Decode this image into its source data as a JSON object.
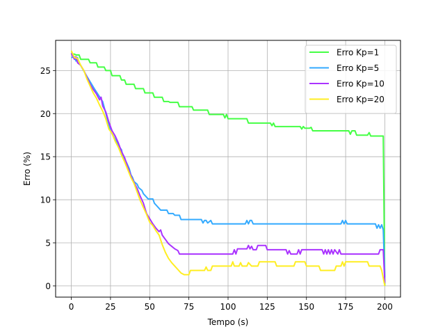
{
  "chart_data": {
    "type": "line",
    "title": "",
    "xlabel": "Tempo (s)",
    "ylabel": "Erro (%)",
    "xlim": [
      -10,
      210
    ],
    "ylim": [
      -1.3,
      28.5
    ],
    "xticks": [
      0,
      25,
      50,
      75,
      100,
      125,
      150,
      175,
      200
    ],
    "yticks": [
      0,
      5,
      10,
      15,
      20,
      25
    ],
    "grid": true,
    "legend_position": "top-right",
    "series": [
      {
        "name": "Erro Kp=1",
        "color": "#44ff44",
        "points": [
          [
            0,
            27.0
          ],
          [
            1,
            26.9
          ],
          [
            2,
            26.9
          ],
          [
            3,
            26.8
          ],
          [
            5,
            26.8
          ],
          [
            6,
            26.3
          ],
          [
            11,
            26.3
          ],
          [
            12,
            25.9
          ],
          [
            16,
            25.9
          ],
          [
            17,
            25.4
          ],
          [
            21,
            25.4
          ],
          [
            22,
            25.0
          ],
          [
            25,
            25.0
          ],
          [
            26,
            24.4
          ],
          [
            31,
            24.4
          ],
          [
            32,
            23.9
          ],
          [
            34,
            23.9
          ],
          [
            35,
            23.4
          ],
          [
            40,
            23.4
          ],
          [
            41,
            22.9
          ],
          [
            46,
            22.9
          ],
          [
            47,
            22.4
          ],
          [
            52,
            22.4
          ],
          [
            53,
            21.9
          ],
          [
            58,
            21.9
          ],
          [
            59,
            21.4
          ],
          [
            62,
            21.4
          ],
          [
            63,
            21.3
          ],
          [
            68,
            21.3
          ],
          [
            69,
            20.8
          ],
          [
            77,
            20.8
          ],
          [
            78,
            20.4
          ],
          [
            87,
            20.4
          ],
          [
            88,
            19.9
          ],
          [
            97,
            19.9
          ],
          [
            98,
            19.5
          ],
          [
            99,
            19.9
          ],
          [
            100,
            19.4
          ],
          [
            112,
            19.4
          ],
          [
            113,
            18.9
          ],
          [
            127,
            18.9
          ],
          [
            128,
            18.6
          ],
          [
            129,
            18.9
          ],
          [
            130,
            18.5
          ],
          [
            146,
            18.5
          ],
          [
            147,
            18.2
          ],
          [
            148,
            18.5
          ],
          [
            149,
            18.3
          ],
          [
            152,
            18.3
          ],
          [
            153,
            18.4
          ],
          [
            154,
            18.0
          ],
          [
            177,
            18.0
          ],
          [
            178,
            17.6
          ],
          [
            179,
            18.0
          ],
          [
            181,
            18.0
          ],
          [
            182,
            17.5
          ],
          [
            189,
            17.5
          ],
          [
            190,
            17.8
          ],
          [
            191,
            17.4
          ],
          [
            199,
            17.4
          ],
          [
            200,
            0.0
          ]
        ]
      },
      {
        "name": "Erro Kp=5",
        "color": "#33aaff",
        "points": [
          [
            0,
            26.5
          ],
          [
            2,
            26.6
          ],
          [
            3,
            26.1
          ],
          [
            4,
            26.5
          ],
          [
            5,
            25.9
          ],
          [
            10,
            24.3
          ],
          [
            15,
            22.8
          ],
          [
            20,
            21.4
          ],
          [
            25,
            18.0
          ],
          [
            28,
            17.0
          ],
          [
            30,
            16.3
          ],
          [
            32,
            15.8
          ],
          [
            33,
            15.0
          ],
          [
            35,
            14.4
          ],
          [
            37,
            13.6
          ],
          [
            38,
            12.9
          ],
          [
            39,
            12.6
          ],
          [
            40,
            12.1
          ],
          [
            42,
            11.8
          ],
          [
            43,
            11.4
          ],
          [
            45,
            11.1
          ],
          [
            46,
            10.7
          ],
          [
            48,
            10.3
          ],
          [
            49,
            10.1
          ],
          [
            52,
            10.1
          ],
          [
            53,
            9.6
          ],
          [
            54,
            9.4
          ],
          [
            56,
            9.0
          ],
          [
            57,
            8.8
          ],
          [
            61,
            8.8
          ],
          [
            62,
            8.4
          ],
          [
            65,
            8.4
          ],
          [
            66,
            8.2
          ],
          [
            69,
            8.2
          ],
          [
            70,
            7.7
          ],
          [
            83,
            7.7
          ],
          [
            84,
            7.3
          ],
          [
            85,
            7.6
          ],
          [
            86,
            7.6
          ],
          [
            87,
            7.3
          ],
          [
            89,
            7.6
          ],
          [
            90,
            7.2
          ],
          [
            111,
            7.2
          ],
          [
            112,
            7.6
          ],
          [
            113,
            7.2
          ],
          [
            114,
            7.6
          ],
          [
            115,
            7.6
          ],
          [
            116,
            7.2
          ],
          [
            172,
            7.2
          ],
          [
            173,
            7.6
          ],
          [
            174,
            7.2
          ],
          [
            175,
            7.6
          ],
          [
            176,
            7.2
          ],
          [
            194,
            7.2
          ],
          [
            195,
            6.7
          ],
          [
            196,
            7.1
          ],
          [
            197,
            6.7
          ],
          [
            198,
            7.1
          ],
          [
            199,
            6.5
          ],
          [
            200,
            1.0
          ]
        ]
      },
      {
        "name": "Erro Kp=10",
        "color": "#aa33ff",
        "points": [
          [
            0,
            27.0
          ],
          [
            2,
            26.3
          ],
          [
            3,
            26.6
          ],
          [
            4,
            25.9
          ],
          [
            6,
            25.6
          ],
          [
            8,
            25.0
          ],
          [
            10,
            24.2
          ],
          [
            12,
            23.4
          ],
          [
            14,
            22.8
          ],
          [
            16,
            22.3
          ],
          [
            18,
            21.6
          ],
          [
            19,
            21.9
          ],
          [
            20,
            20.9
          ],
          [
            22,
            20.2
          ],
          [
            24,
            19.0
          ],
          [
            26,
            18.0
          ],
          [
            28,
            17.4
          ],
          [
            30,
            16.6
          ],
          [
            32,
            15.6
          ],
          [
            34,
            14.9
          ],
          [
            36,
            13.8
          ],
          [
            38,
            12.8
          ],
          [
            40,
            12.0
          ],
          [
            42,
            11.3
          ],
          [
            44,
            10.4
          ],
          [
            46,
            9.6
          ],
          [
            48,
            8.4
          ],
          [
            50,
            7.8
          ],
          [
            52,
            7.2
          ],
          [
            54,
            6.7
          ],
          [
            56,
            6.3
          ],
          [
            57,
            6.5
          ],
          [
            58,
            5.9
          ],
          [
            60,
            5.4
          ],
          [
            62,
            4.9
          ],
          [
            64,
            4.6
          ],
          [
            66,
            4.3
          ],
          [
            68,
            4.1
          ],
          [
            69,
            3.7
          ],
          [
            103,
            3.7
          ],
          [
            104,
            4.2
          ],
          [
            105,
            3.7
          ],
          [
            106,
            4.3
          ],
          [
            112,
            4.3
          ],
          [
            113,
            4.7
          ],
          [
            114,
            4.3
          ],
          [
            115,
            4.6
          ],
          [
            116,
            4.2
          ],
          [
            118,
            4.2
          ],
          [
            119,
            4.7
          ],
          [
            124,
            4.7
          ],
          [
            125,
            4.2
          ],
          [
            137,
            4.2
          ],
          [
            138,
            3.7
          ],
          [
            139,
            4.1
          ],
          [
            140,
            3.7
          ],
          [
            144,
            3.7
          ],
          [
            145,
            4.2
          ],
          [
            146,
            3.7
          ],
          [
            147,
            4.2
          ],
          [
            160,
            4.2
          ],
          [
            161,
            3.7
          ],
          [
            162,
            4.2
          ],
          [
            163,
            3.7
          ],
          [
            164,
            4.2
          ],
          [
            165,
            3.7
          ],
          [
            166,
            4.2
          ],
          [
            167,
            3.7
          ],
          [
            168,
            4.2
          ],
          [
            170,
            3.7
          ],
          [
            171,
            4.2
          ],
          [
            172,
            3.7
          ],
          [
            196,
            3.7
          ],
          [
            197,
            4.2
          ],
          [
            199,
            4.2
          ],
          [
            200,
            0.3
          ]
        ]
      },
      {
        "name": "Erro Kp=20",
        "color": "#ffee22",
        "points": [
          [
            0,
            27.3
          ],
          [
            2,
            26.5
          ],
          [
            4,
            26.4
          ],
          [
            6,
            25.6
          ],
          [
            8,
            25.0
          ],
          [
            10,
            24.0
          ],
          [
            12,
            23.2
          ],
          [
            14,
            22.4
          ],
          [
            16,
            21.8
          ],
          [
            18,
            21.0
          ],
          [
            20,
            20.3
          ],
          [
            22,
            19.4
          ],
          [
            24,
            18.2
          ],
          [
            26,
            17.7
          ],
          [
            28,
            16.8
          ],
          [
            30,
            16.1
          ],
          [
            32,
            15.2
          ],
          [
            34,
            14.4
          ],
          [
            36,
            13.5
          ],
          [
            38,
            12.6
          ],
          [
            40,
            11.9
          ],
          [
            42,
            10.9
          ],
          [
            44,
            9.9
          ],
          [
            46,
            9.1
          ],
          [
            48,
            8.3
          ],
          [
            50,
            7.4
          ],
          [
            52,
            7.0
          ],
          [
            54,
            6.4
          ],
          [
            56,
            5.9
          ],
          [
            58,
            4.8
          ],
          [
            60,
            3.9
          ],
          [
            62,
            3.2
          ],
          [
            64,
            2.7
          ],
          [
            66,
            2.3
          ],
          [
            68,
            1.9
          ],
          [
            70,
            1.5
          ],
          [
            72,
            1.3
          ],
          [
            75,
            1.3
          ],
          [
            76,
            1.8
          ],
          [
            85,
            1.8
          ],
          [
            86,
            2.2
          ],
          [
            87,
            1.8
          ],
          [
            89,
            1.8
          ],
          [
            90,
            2.3
          ],
          [
            102,
            2.3
          ],
          [
            103,
            2.8
          ],
          [
            104,
            2.3
          ],
          [
            107,
            2.3
          ],
          [
            108,
            2.7
          ],
          [
            109,
            2.3
          ],
          [
            112,
            2.3
          ],
          [
            113,
            2.7
          ],
          [
            115,
            2.3
          ],
          [
            119,
            2.3
          ],
          [
            120,
            2.8
          ],
          [
            130,
            2.8
          ],
          [
            131,
            2.3
          ],
          [
            142,
            2.3
          ],
          [
            143,
            2.8
          ],
          [
            149,
            2.8
          ],
          [
            150,
            2.3
          ],
          [
            158,
            2.3
          ],
          [
            159,
            1.8
          ],
          [
            168,
            1.8
          ],
          [
            169,
            2.3
          ],
          [
            172,
            2.3
          ],
          [
            173,
            2.8
          ],
          [
            174,
            2.3
          ],
          [
            175,
            2.8
          ],
          [
            189,
            2.8
          ],
          [
            190,
            2.3
          ],
          [
            197,
            2.3
          ],
          [
            198,
            1.8
          ],
          [
            200,
            0.0
          ]
        ]
      }
    ]
  }
}
